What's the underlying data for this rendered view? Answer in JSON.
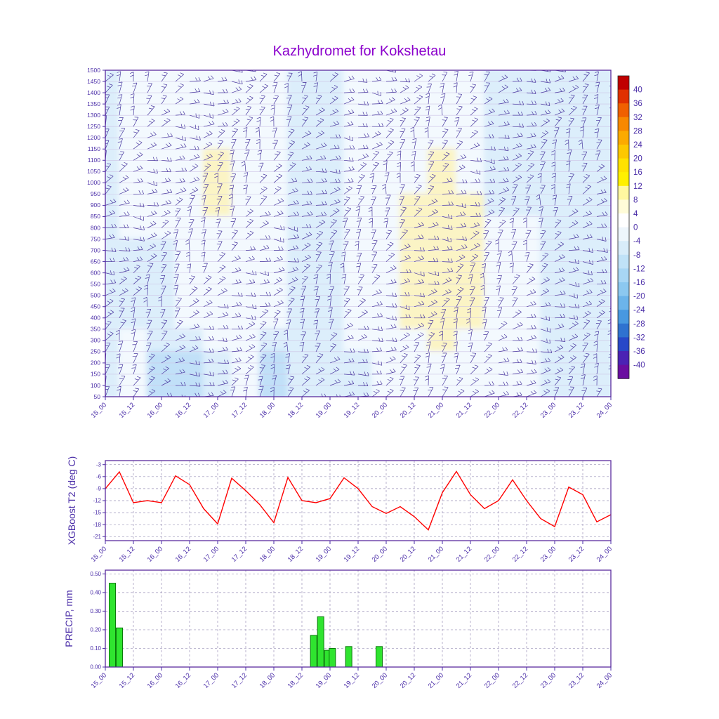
{
  "title": "Kazhydromet for Kokshetau",
  "colors": {
    "title": "#8b00cc",
    "axis": "#4b2ea8",
    "frame": "#5a2b9e",
    "grid_dash": "#9b93b8",
    "level_line": "#cdc4e6",
    "barb": "#4b3aa0",
    "line": "#ff0000",
    "bar_fill": "#2fe42f",
    "bar_edge": "#0a7a0a"
  },
  "time_labels": [
    "15_00",
    "15_12",
    "16_00",
    "16_12",
    "17_00",
    "17_12",
    "18_00",
    "18_12",
    "19_00",
    "19_12",
    "20_00",
    "20_12",
    "21_00",
    "21_12",
    "22_00",
    "22_12",
    "23_00",
    "23_12",
    "24_00"
  ],
  "chart_data": [
    {
      "type": "heatmap",
      "title": "Kazhydromet for Kokshetau",
      "xlabel": "",
      "ylabel": "",
      "x_labels": [
        "15_00",
        "15_12",
        "16_00",
        "16_12",
        "17_00",
        "17_12",
        "18_00",
        "18_12",
        "19_00",
        "19_12",
        "20_00",
        "20_12",
        "21_00",
        "21_12",
        "22_00",
        "22_12",
        "23_00",
        "23_12",
        "24_00"
      ],
      "x_hours_range": [
        0,
        216
      ],
      "y_tick_levels": [
        1500,
        1450,
        1400,
        1350,
        1300,
        1250,
        1200,
        1150,
        1100,
        1050,
        1000,
        950,
        900,
        850,
        800,
        750,
        700,
        650,
        600,
        550,
        500,
        450,
        400,
        350,
        300,
        250,
        200,
        150,
        100,
        50
      ],
      "grid_levels": [
        1500,
        1400,
        1300,
        1200,
        1100,
        1000,
        900,
        800,
        700,
        600,
        500,
        400,
        300,
        200,
        100
      ],
      "values": [
        [
          -6,
          -2,
          -2,
          -2,
          -2,
          -2,
          -4,
          -6,
          -6,
          -4,
          -2,
          -2,
          -2,
          -2,
          -5,
          -5,
          -5,
          -5,
          -6
        ],
        [
          -6,
          -2,
          -2,
          -2,
          -2,
          -2,
          -4,
          -6,
          -6,
          -4,
          -2,
          -2,
          -2,
          -2,
          -5,
          -5,
          -5,
          -5,
          -6
        ],
        [
          -6,
          -2,
          -2,
          -2,
          -2,
          -2,
          -4,
          -6,
          -6,
          -4,
          -2,
          -2,
          -2,
          -2,
          -5,
          -5,
          -5,
          -5,
          -6
        ],
        [
          -6,
          -2,
          -2,
          -2,
          -2,
          -2,
          -4,
          -6,
          -6,
          -4,
          -2,
          -2,
          -2,
          -2,
          -5,
          -5,
          -5,
          -5,
          -6
        ],
        [
          -6,
          -3,
          -2,
          -2,
          1,
          -2,
          -4,
          -6,
          -6,
          -4,
          -2,
          -2,
          1,
          -2,
          -5,
          -5,
          -5,
          -5,
          -6
        ],
        [
          -6,
          -3,
          -2,
          -2,
          1,
          -2,
          -4,
          -6,
          -6,
          -4,
          -2,
          -2,
          1,
          -2,
          -5,
          -5,
          -5,
          -5,
          -6
        ],
        [
          -6,
          -3,
          -2,
          -2,
          1,
          -2,
          -4,
          -6,
          -6,
          -4,
          -2,
          1,
          1,
          1,
          -5,
          -5,
          -5,
          -5,
          -6
        ],
        [
          -6,
          -3,
          -3,
          -2,
          -2,
          -2,
          -4,
          -6,
          -5,
          -4,
          -2,
          1,
          1,
          1,
          -2,
          -2,
          -5,
          -5,
          -6
        ],
        [
          -6,
          -5,
          -5,
          -3,
          -2,
          -2,
          -4,
          -5,
          -5,
          -4,
          -2,
          1,
          1,
          1,
          -2,
          -2,
          -5,
          -5,
          -6
        ],
        [
          -6,
          -5,
          -5,
          -3,
          -2,
          -2,
          -4,
          -5,
          -5,
          -4,
          -2,
          1,
          1,
          1,
          -2,
          -2,
          -5,
          -6,
          -6
        ],
        [
          -6,
          -5,
          -5,
          -3,
          -2,
          -2,
          -4,
          -5,
          -5,
          -4,
          -2,
          1,
          1,
          1,
          -2,
          -2,
          -5,
          -6,
          -6
        ],
        [
          -6,
          -5,
          -5,
          -3,
          -2,
          -2,
          -4,
          -5,
          -5,
          -4,
          -2,
          1,
          1,
          1,
          -2,
          -2,
          -5,
          -6,
          -6
        ],
        [
          -6,
          -3,
          -5,
          -5,
          -3,
          -3,
          -5,
          -5,
          -5,
          -4,
          -2,
          -2,
          1,
          -2,
          -2,
          -2,
          -5,
          -6,
          -6
        ],
        [
          -6,
          -3,
          -9,
          -9,
          -8,
          -3,
          -10,
          -8,
          -5,
          -5,
          -3,
          -3,
          -2,
          -2,
          -3,
          -3,
          -6,
          -6,
          -7
        ],
        [
          -5,
          -3,
          -9,
          -9,
          -8,
          -3,
          -10,
          -8,
          -5,
          -5,
          -3,
          -3,
          -2,
          -2,
          -3,
          -3,
          -6,
          -6,
          -7
        ]
      ],
      "fill_scale": [
        {
          "lt": -12,
          "color": "#9ecdf2"
        },
        {
          "lt": -8,
          "color": "#c1e0f8"
        },
        {
          "lt": -4,
          "color": "#dceefb"
        },
        {
          "lt": 0,
          "color": "#f3f9fe"
        },
        {
          "lt": 999,
          "color": "#fbf4c5"
        }
      ],
      "wind_barbs_overlay": true,
      "colorbar": {
        "ticks": [
          40,
          36,
          32,
          28,
          24,
          20,
          16,
          12,
          8,
          4,
          0,
          -4,
          -8,
          -12,
          -16,
          -20,
          -24,
          -28,
          -32,
          -36,
          -40
        ],
        "colors": [
          "#c00000",
          "#e03000",
          "#f06000",
          "#f88800",
          "#fcaa00",
          "#fdc800",
          "#ffe200",
          "#fff000",
          "#fff8a0",
          "#fffcd8",
          "#ffffff",
          "#eef6fc",
          "#d8ecfa",
          "#c0e2f8",
          "#a8d6f5",
          "#8cc8f0",
          "#6cb4ea",
          "#4898e0",
          "#2f72d0",
          "#2848c8",
          "#4b22b4",
          "#6a0da0"
        ]
      }
    },
    {
      "type": "line",
      "ylabel": "XGBoost T2 (deg C)",
      "line_color": "#ff0000",
      "x_labels": [
        "15_00",
        "15_12",
        "16_00",
        "16_12",
        "17_00",
        "17_12",
        "18_00",
        "18_12",
        "19_00",
        "19_12",
        "20_00",
        "20_12",
        "21_00",
        "21_12",
        "22_00",
        "22_12",
        "23_00",
        "23_12",
        "24_00"
      ],
      "x_hours_step": 6,
      "yticks": [
        -3,
        -6,
        -9,
        -12,
        -15,
        -18,
        -21
      ],
      "ylim": [
        -22,
        -2
      ],
      "values": [
        -9.0,
        -4.8,
        -12.5,
        -12.0,
        -12.5,
        -5.8,
        -8.0,
        -14.0,
        -17.8,
        -6.4,
        -9.5,
        -13.0,
        -17.5,
        -6.2,
        -12.0,
        -12.5,
        -11.5,
        -6.3,
        -9.0,
        -13.5,
        -15.2,
        -13.5,
        -16.0,
        -19.3,
        -10.0,
        -4.7,
        -10.5,
        -14.0,
        -12.0,
        -6.8,
        -12.0,
        -16.5,
        -18.5,
        -8.6,
        -10.5,
        -17.3,
        -15.5
      ]
    },
    {
      "type": "bar",
      "ylabel": "PRECIP, mm",
      "x_labels": [
        "15_00",
        "15_12",
        "16_00",
        "16_12",
        "17_00",
        "17_12",
        "18_00",
        "18_12",
        "19_00",
        "19_12",
        "20_00",
        "20_12",
        "21_00",
        "21_12",
        "22_00",
        "22_12",
        "23_00",
        "23_12",
        "24_00"
      ],
      "yticks": [
        0.0,
        0.1,
        0.2,
        0.3,
        0.4,
        0.5
      ],
      "ylim": [
        0,
        0.52
      ],
      "bars": [
        {
          "h": 3,
          "v": 0.45
        },
        {
          "h": 6,
          "v": 0.21
        },
        {
          "h": 89,
          "v": 0.17
        },
        {
          "h": 92,
          "v": 0.27
        },
        {
          "h": 95,
          "v": 0.09
        },
        {
          "h": 97,
          "v": 0.1
        },
        {
          "h": 104,
          "v": 0.11
        },
        {
          "h": 117,
          "v": 0.11
        }
      ]
    }
  ]
}
